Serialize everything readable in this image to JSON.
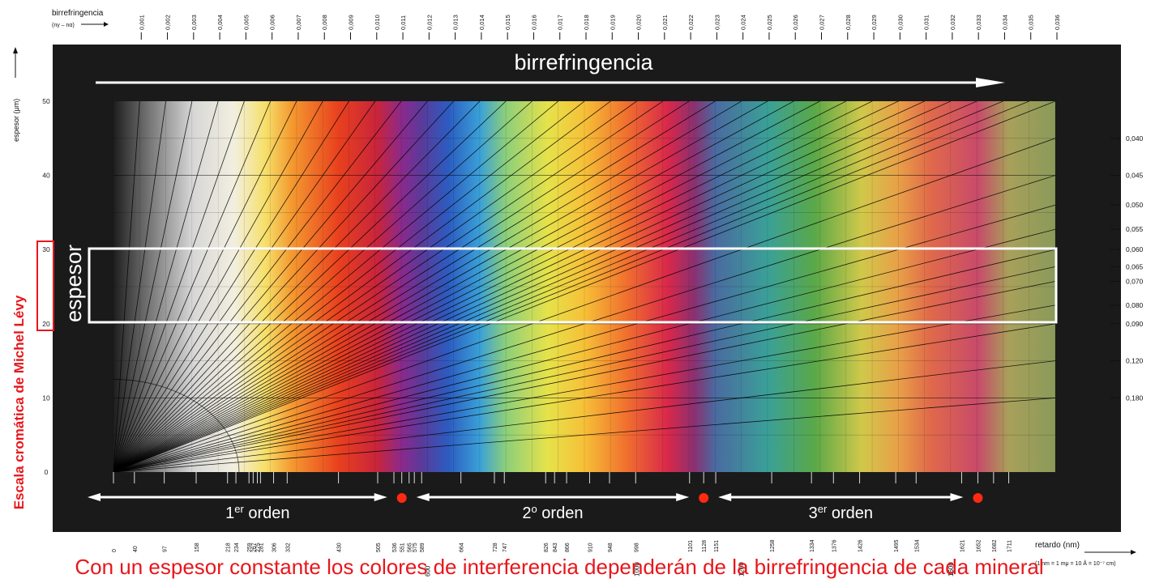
{
  "chart_data": {
    "type": "line",
    "top_axis": {
      "title": "birrefringencia",
      "subtitle": "(nγ – nα)",
      "ticks": [
        "0,001",
        "0,002",
        "0,003",
        "0,004",
        "0,005",
        "0,006",
        "0,007",
        "0,008",
        "0,009",
        "0,010",
        "0,011",
        "0,012",
        "0,013",
        "0,014",
        "0,015",
        "0,016",
        "0,017",
        "0,018",
        "0,019",
        "0,020",
        "0,021",
        "0,022",
        "0,023",
        "0,024",
        "0,025",
        "0,026",
        "0,027",
        "0,028",
        "0,029",
        "0,030",
        "0,031",
        "0,032",
        "0,033",
        "0,034",
        "0,035",
        "0,036"
      ]
    },
    "right_axis": {
      "ticks": [
        {
          "label": "0,040",
          "value": 0.04
        },
        {
          "label": "0,045",
          "value": 0.045
        },
        {
          "label": "0,050",
          "value": 0.05
        },
        {
          "label": "0,055",
          "value": 0.055
        },
        {
          "label": "0,060",
          "value": 0.06
        },
        {
          "label": "0,065",
          "value": 0.065
        },
        {
          "label": "0,070",
          "value": 0.07
        },
        {
          "label": "0,080",
          "value": 0.08
        },
        {
          "label": "0,090",
          "value": 0.09
        },
        {
          "label": "0,120",
          "value": 0.12
        },
        {
          "label": "0,180",
          "value": 0.18
        }
      ]
    },
    "y_axis": {
      "title": "espesor (μm)",
      "range": [
        0,
        50
      ],
      "ticks": [
        "0",
        "10",
        "20",
        "30",
        "40",
        "50"
      ]
    },
    "x_axis": {
      "title": "retardo (nm)",
      "range": [
        0,
        1800
      ],
      "footnote": "(1 nm = 1 mμ = 10 Å = 10⁻⁷ cm)",
      "ticks": [
        0,
        40,
        97,
        158,
        218,
        234,
        259,
        267,
        275,
        281,
        306,
        332,
        430,
        505,
        536,
        551,
        565,
        575,
        589,
        664,
        728,
        747,
        826,
        843,
        866,
        910,
        948,
        998,
        1101,
        1128,
        1151,
        1258,
        1334,
        1376,
        1426,
        1495,
        1534,
        1621,
        1652,
        1682,
        1711
      ],
      "label_ticks": [
        "0",
        "40",
        "97",
        "158",
        "218",
        "234",
        "259",
        "267",
        "275",
        "281",
        "306",
        "332",
        "430",
        "505",
        "536",
        "551",
        "565",
        "575",
        "589",
        "664",
        "728",
        "747",
        "826",
        "843",
        "866",
        "910",
        "948",
        "998",
        "1101",
        "1128",
        "1151",
        "1258",
        "1334",
        "1376",
        "1426",
        "1495",
        "1534",
        "1621",
        "1652",
        "1682",
        "1711"
      ],
      "lower_ticks": [
        "600",
        "1000",
        "1200",
        "1600"
      ]
    },
    "birefringence_lines": [
      0.001,
      0.002,
      0.003,
      0.004,
      0.005,
      0.006,
      0.007,
      0.008,
      0.009,
      0.01,
      0.011,
      0.012,
      0.013,
      0.014,
      0.015,
      0.016,
      0.017,
      0.018,
      0.019,
      0.02,
      0.021,
      0.022,
      0.023,
      0.024,
      0.025,
      0.026,
      0.027,
      0.028,
      0.029,
      0.03,
      0.031,
      0.032,
      0.033,
      0.034,
      0.035,
      0.036,
      0.04,
      0.045,
      0.05,
      0.055,
      0.06,
      0.065,
      0.07,
      0.08,
      0.09,
      0.12,
      0.18
    ],
    "order_boundaries": [
      551,
      1128,
      1652
    ],
    "orders": [
      {
        "base": "1",
        "sup": "er",
        "word": "orden",
        "from": 0,
        "to": 551
      },
      {
        "base": "2",
        "sup": "o",
        "word": "orden",
        "from": 551,
        "to": 1128
      },
      {
        "base": "3",
        "sup": "er",
        "word": "orden",
        "from": 1128,
        "to": 1652
      }
    ],
    "color_stops": [
      {
        "r": 0,
        "color": "#1e1e1e"
      },
      {
        "r": 60,
        "color": "#6b6b6b"
      },
      {
        "r": 150,
        "color": "#d6d6d6"
      },
      {
        "r": 230,
        "color": "#f2efe0"
      },
      {
        "r": 290,
        "color": "#f6e06a"
      },
      {
        "r": 340,
        "color": "#f49a30"
      },
      {
        "r": 430,
        "color": "#e8401e"
      },
      {
        "r": 505,
        "color": "#c8243c"
      },
      {
        "r": 551,
        "color": "#8a2a8c"
      },
      {
        "r": 589,
        "color": "#5a3a9a"
      },
      {
        "r": 640,
        "color": "#2c5cc0"
      },
      {
        "r": 700,
        "color": "#3aa0d8"
      },
      {
        "r": 750,
        "color": "#8ccf7a"
      },
      {
        "r": 830,
        "color": "#e6e24a"
      },
      {
        "r": 900,
        "color": "#f6c038"
      },
      {
        "r": 980,
        "color": "#f0702e"
      },
      {
        "r": 1060,
        "color": "#d8284a"
      },
      {
        "r": 1110,
        "color": "#8a3070"
      },
      {
        "r": 1150,
        "color": "#4a6aa0"
      },
      {
        "r": 1250,
        "color": "#3aa098"
      },
      {
        "r": 1340,
        "color": "#5aa848"
      },
      {
        "r": 1430,
        "color": "#d0c84a"
      },
      {
        "r": 1500,
        "color": "#e8a048"
      },
      {
        "r": 1560,
        "color": "#e06a4a"
      },
      {
        "r": 1652,
        "color": "#c84a6a"
      },
      {
        "r": 1711,
        "color": "#a8a05a"
      },
      {
        "r": 1800,
        "color": "#8a9a5a"
      }
    ]
  },
  "overlays": {
    "birefringence_arrow_label": "birrefringencia",
    "thickness_label": "espesor",
    "thickness_band": [
      20,
      30
    ]
  },
  "side_title": "Escala cromática de Michel Lévy",
  "caption": "Con un espesor constante los colores de interferencia dependerán de la birrefringencia de cada mineral",
  "colors": {
    "accent": "#e8161b",
    "background": "#1a1a1a",
    "marker": "#ff2a10",
    "band": "#ffffff"
  }
}
